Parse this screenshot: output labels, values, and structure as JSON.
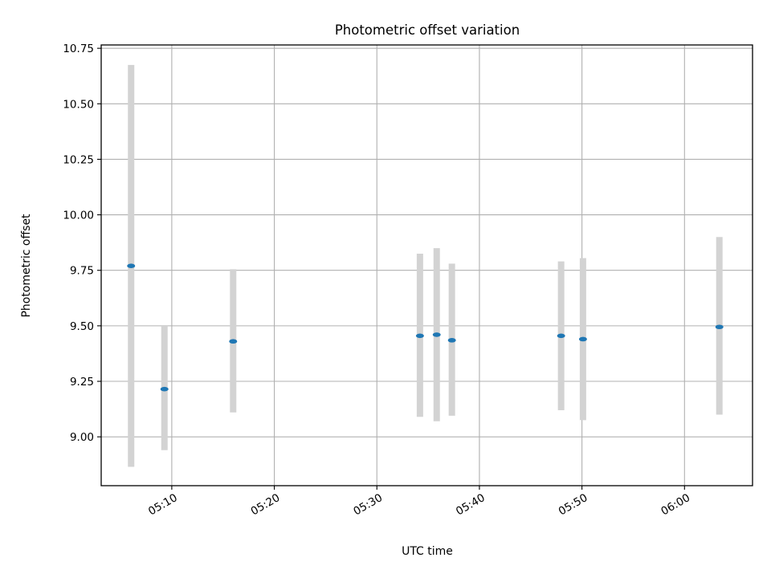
{
  "chart_data": {
    "type": "scatter",
    "title": "Photometric offset variation",
    "xlabel": "UTC time",
    "ylabel": "Photometric offset",
    "x_ticks": [
      "05:10",
      "05:20",
      "05:30",
      "05:40",
      "05:50",
      "06:00"
    ],
    "y_ticks": [
      "9.00",
      "9.25",
      "9.50",
      "9.75",
      "10.00",
      "10.25",
      "10.50",
      "10.75"
    ],
    "xlim": [
      "05:03:07",
      "06:06:38"
    ],
    "ylim": [
      8.78,
      10.765
    ],
    "grid": true,
    "colors": {
      "points": "#1f77b4",
      "error_bars": "#d3d3d3",
      "grid": "#b0b0b0"
    },
    "series": [
      {
        "x": [
          "05:06:02",
          "05:09:17",
          "05:15:59",
          "05:34:12",
          "05:35:50",
          "05:37:19",
          "05:47:58",
          "05:50:06",
          "06:03:24"
        ],
        "y": [
          9.77,
          9.215,
          9.43,
          9.455,
          9.46,
          9.435,
          9.455,
          9.44,
          9.495
        ],
        "err_low": [
          8.865,
          8.94,
          9.11,
          9.09,
          9.07,
          9.095,
          9.12,
          9.075,
          9.1
        ],
        "err_high": [
          10.675,
          9.5,
          9.755,
          9.825,
          9.85,
          9.78,
          9.79,
          9.805,
          9.9
        ]
      }
    ]
  }
}
